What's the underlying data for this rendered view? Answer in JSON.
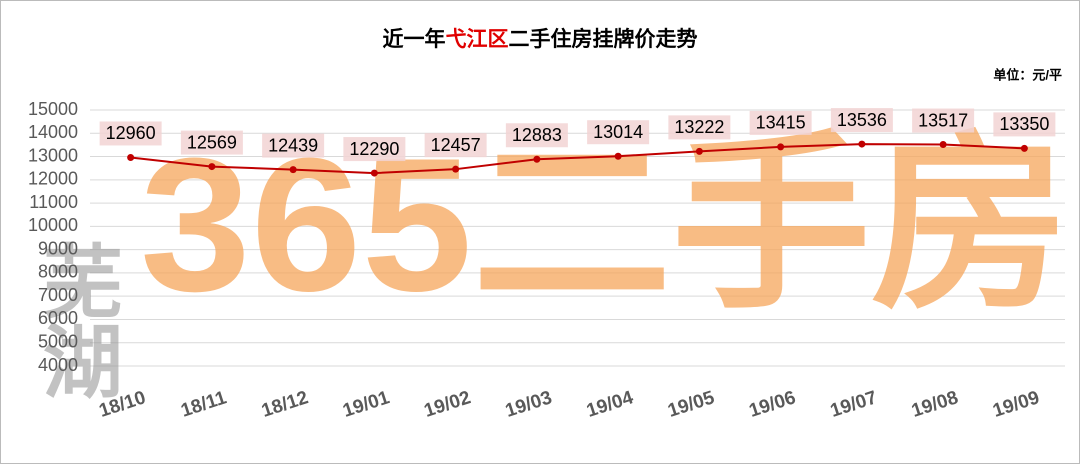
{
  "chart_data": {
    "type": "line",
    "title": [
      "近一年",
      "弋江区",
      "二手住房挂牌价走势"
    ],
    "title_colors": [
      "#000000",
      "#e00000",
      "#000000"
    ],
    "unit": "单位：元/平",
    "watermark": "365二手房",
    "watermark_side": "芜湖",
    "categories": [
      "18/10",
      "18/11",
      "18/12",
      "19/01",
      "19/02",
      "19/03",
      "19/04",
      "19/05",
      "19/06",
      "19/07",
      "19/08",
      "19/09"
    ],
    "values": [
      12960,
      12569,
      12439,
      12290,
      12457,
      12883,
      13014,
      13222,
      13415,
      13536,
      13517,
      13350
    ],
    "color": "#c00000",
    "ylim": [
      4000,
      15000
    ],
    "yticks": [
      4000,
      5000,
      6000,
      7000,
      8000,
      9000,
      10000,
      11000,
      12000,
      13000,
      14000,
      15000
    ],
    "grid": true
  }
}
